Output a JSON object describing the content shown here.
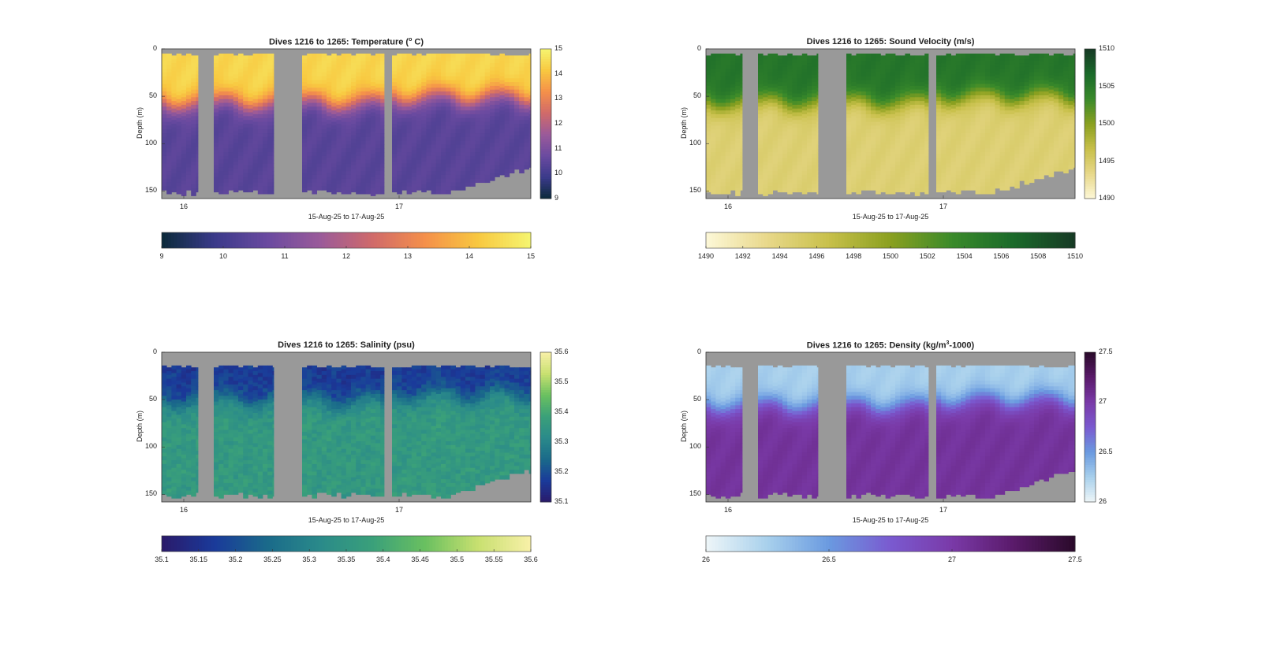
{
  "figure": {
    "xlabel": "15-Aug-25 to 17-Aug-25",
    "ylabel": "Depth (m)",
    "depth_ticks": [
      "0",
      "50",
      "100",
      "150"
    ],
    "day_ticks": [
      "16",
      "17"
    ]
  },
  "chart_data": [
    {
      "type": "heatmap",
      "id": "temperature",
      "title_pre": "Dives 1216 to 1265: Temperature (",
      "title_sup": "o",
      "title_post": " C)",
      "xlabel": "15-Aug-25 to 17-Aug-25",
      "ylabel": "Depth (m)",
      "x_ticks": [
        "16",
        "17"
      ],
      "y_ticks": [
        0,
        50,
        100,
        150
      ],
      "ylim": [
        0,
        158
      ],
      "clim": [
        9,
        15
      ],
      "colorbar_ticks": [
        "9",
        "10",
        "11",
        "12",
        "13",
        "14",
        "15"
      ],
      "h_colorbar_ticks": [
        "9",
        "10",
        "11",
        "12",
        "13",
        "14",
        "15"
      ],
      "colormap": [
        "#0b2a3a",
        "#3a3a8a",
        "#6a4aa0",
        "#9a5a9a",
        "#d06a6a",
        "#f5904a",
        "#f8c840",
        "#f5f570"
      ],
      "surface_value": 14.4,
      "deep_value": 10.4,
      "mixed_layer_depth_m": 55,
      "missing_color": "#999999"
    },
    {
      "type": "heatmap",
      "id": "sound_velocity",
      "title_pre": "Dives 1216 to 1265: Sound Velocity (m/s)",
      "title_sup": "",
      "title_post": "",
      "xlabel": "15-Aug-25 to 17-Aug-25",
      "ylabel": "Depth (m)",
      "x_ticks": [
        "16",
        "17"
      ],
      "y_ticks": [
        0,
        50,
        100,
        150
      ],
      "ylim": [
        0,
        158
      ],
      "clim": [
        1490,
        1510
      ],
      "colorbar_ticks": [
        "1490",
        "1495",
        "1500",
        "1505",
        "1510"
      ],
      "h_colorbar_ticks": [
        "1490",
        "1492",
        "1494",
        "1496",
        "1498",
        "1500",
        "1502",
        "1504",
        "1506",
        "1508",
        "1510"
      ],
      "colormap": [
        "#fdf8d8",
        "#e8d88a",
        "#c8c04a",
        "#8aa020",
        "#3a8a2a",
        "#1a6a2a",
        "#173a25"
      ],
      "surface_value": 1505.5,
      "deep_value": 1494.5,
      "mixed_layer_depth_m": 55,
      "missing_color": "#999999"
    },
    {
      "type": "heatmap",
      "id": "salinity",
      "title_pre": "Dives 1216 to 1265: Salinity (psu)",
      "title_sup": "",
      "title_post": "",
      "xlabel": "15-Aug-25 to 17-Aug-25",
      "ylabel": "Depth (m)",
      "x_ticks": [
        "16",
        "17"
      ],
      "y_ticks": [
        0,
        50,
        100,
        150
      ],
      "ylim": [
        0,
        158
      ],
      "clim": [
        35.1,
        35.6
      ],
      "colorbar_ticks": [
        "35.1",
        "35.2",
        "35.3",
        "35.4",
        "35.5",
        "35.6"
      ],
      "h_colorbar_ticks": [
        "35.1",
        "35.15",
        "35.2",
        "35.25",
        "35.3",
        "35.35",
        "35.4",
        "35.45",
        "35.5",
        "35.55",
        "35.6"
      ],
      "colormap": [
        "#2a1a6a",
        "#1a3a9a",
        "#1a6a8a",
        "#2a8a8a",
        "#3aa07a",
        "#6ac060",
        "#c8e070",
        "#f8f0a8"
      ],
      "surface_value": 35.17,
      "deep_value": 35.36,
      "mixed_layer_depth_m": 50,
      "missing_color": "#999999"
    },
    {
      "type": "heatmap",
      "id": "density",
      "title_pre": "Dives 1216 to 1265: Density (kg/m",
      "title_sup": "3",
      "title_post": "-1000)",
      "xlabel": "15-Aug-25 to 17-Aug-25",
      "ylabel": "Depth (m)",
      "x_ticks": [
        "16",
        "17"
      ],
      "y_ticks": [
        0,
        50,
        100,
        150
      ],
      "ylim": [
        0,
        158
      ],
      "clim": [
        26,
        27.5
      ],
      "colorbar_ticks": [
        "26",
        "26.5",
        "27",
        "27.5"
      ],
      "h_colorbar_ticks": [
        "26",
        "26.5",
        "27",
        "27.5"
      ],
      "colormap": [
        "#eef6f8",
        "#a8d0ec",
        "#6a9ae0",
        "#7a5ad0",
        "#7a3aa8",
        "#5a1a6a",
        "#2a0a2a"
      ],
      "surface_value": 26.25,
      "deep_value": 27.05,
      "mixed_layer_depth_m": 55,
      "missing_color": "#999999"
    }
  ]
}
